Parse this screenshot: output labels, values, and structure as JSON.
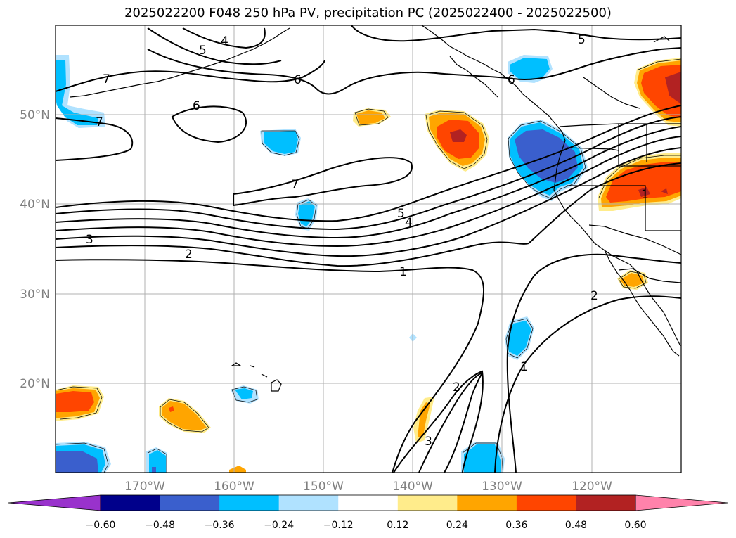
{
  "title": "2025022200 F048 250 hPa PV, precipitation PC (2025022400 - 2025022500)",
  "map": {
    "region": "North Pacific",
    "projection": "equirectangular",
    "lon_range": [
      -180,
      -110
    ],
    "lat_range": [
      10,
      60
    ],
    "grid": true,
    "lon_ticks": [
      {
        "value": -170,
        "label": "170°W"
      },
      {
        "value": -160,
        "label": "160°W"
      },
      {
        "value": -150,
        "label": "150°W"
      },
      {
        "value": -140,
        "label": "140°W"
      },
      {
        "value": -130,
        "label": "130°W"
      },
      {
        "value": -120,
        "label": "120°W"
      }
    ],
    "lat_ticks": [
      {
        "value": 50,
        "label": "50°N"
      },
      {
        "value": 40,
        "label": "40°N"
      },
      {
        "value": 30,
        "label": "30°N"
      },
      {
        "value": 20,
        "label": "20°N"
      }
    ]
  },
  "contour_labels": [
    "5",
    "4",
    "7",
    "6",
    "6",
    "7",
    "6",
    "7",
    "5",
    "4",
    "3",
    "2",
    "1",
    "2",
    "1",
    "2",
    "3",
    "5",
    "1"
  ],
  "colorbar": {
    "orientation": "horizontal",
    "extend": "both",
    "levels": [
      "−0.60",
      "−0.48",
      "−0.36",
      "−0.24",
      "−0.12",
      "0.12",
      "0.24",
      "0.36",
      "0.48",
      "0.60"
    ],
    "colors": [
      "#9932cc",
      "#00008b",
      "#3a5fcd",
      "#00bfff",
      "#b0e2ff",
      "#ffffff",
      "#ffec8b",
      "#ffa500",
      "#ff4500",
      "#b22222",
      "#ff82ab"
    ]
  }
}
